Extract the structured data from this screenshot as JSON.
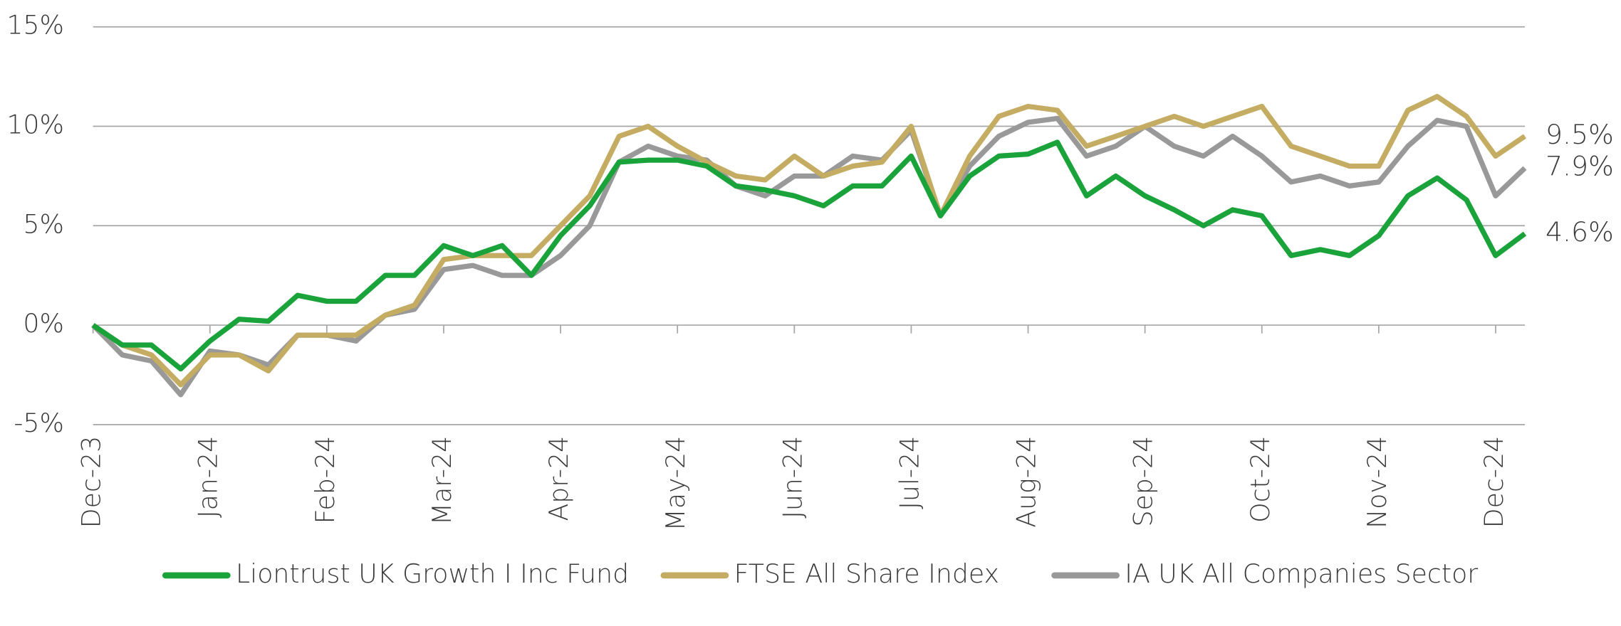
{
  "chart_data": {
    "type": "line",
    "categories": [
      "Dec-23",
      null,
      null,
      null,
      "Jan-24",
      null,
      null,
      null,
      "Feb-24",
      null,
      null,
      null,
      "Mar-24",
      null,
      null,
      null,
      "Apr-24",
      null,
      null,
      null,
      "May-24",
      null,
      null,
      null,
      "Jun-24",
      null,
      null,
      null,
      "Jul-24",
      null,
      null,
      null,
      "Aug-24",
      null,
      null,
      null,
      "Sep-24",
      null,
      null,
      null,
      "Oct-24",
      null,
      null,
      null,
      "Nov-24",
      null,
      null,
      null,
      "Dec-24",
      null
    ],
    "series": [
      {
        "name": "Liontrust UK Growth I Inc Fund",
        "color": "#1aa33a",
        "end_label": "4.6%",
        "values": [
          0,
          -1,
          -1,
          -2.2,
          -0.8,
          0.3,
          0.2,
          1.5,
          1.2,
          1.2,
          2.5,
          2.5,
          4,
          3.5,
          4,
          2.5,
          4.5,
          6,
          8.2,
          8.3,
          8.3,
          8,
          7,
          6.8,
          6.5,
          6,
          7,
          7,
          8.5,
          5.5,
          7.5,
          8.5,
          8.6,
          9.2,
          6.5,
          7.5,
          6.5,
          5.8,
          5,
          5.8,
          5.5,
          3.5,
          3.8,
          3.5,
          4.5,
          6.5,
          7.4,
          6.3,
          3.5,
          4.6
        ]
      },
      {
        "name": "FTSE All Share Index",
        "color": "#c4ad62",
        "end_label": "9.5%",
        "values": [
          0,
          -1,
          -1.5,
          -3,
          -1.5,
          -1.5,
          -2.3,
          -0.5,
          -0.5,
          -0.5,
          0.5,
          1,
          3.3,
          3.5,
          3.5,
          3.5,
          5,
          6.5,
          9.5,
          10,
          9,
          8.2,
          7.5,
          7.3,
          8.5,
          7.5,
          8,
          8.2,
          10,
          5.5,
          8.5,
          10.5,
          11,
          10.8,
          9,
          9.5,
          10,
          10.5,
          10,
          10.5,
          11,
          9,
          8.5,
          8,
          8,
          10.8,
          11.5,
          10.5,
          8.5,
          9.5
        ]
      },
      {
        "name": "IA UK All Companies Sector",
        "color": "#999999",
        "end_label": "7.9%",
        "values": [
          0,
          -1.5,
          -1.8,
          -3.5,
          -1.3,
          -1.5,
          -2,
          -0.5,
          -0.5,
          -0.8,
          0.5,
          0.8,
          2.8,
          3,
          2.5,
          2.5,
          3.5,
          5,
          8.2,
          9,
          8.5,
          8.3,
          7,
          6.5,
          7.5,
          7.5,
          8.5,
          8.3,
          9.8,
          5.5,
          8,
          9.5,
          10.2,
          10.4,
          8.5,
          9,
          10,
          9,
          8.5,
          9.5,
          8.5,
          7.2,
          7.5,
          7,
          7.2,
          9,
          10.3,
          10,
          6.5,
          7.9
        ]
      }
    ],
    "ylim": [
      -5,
      15
    ],
    "yticks": [
      {
        "value": -5,
        "label": "-5%"
      },
      {
        "value": 0,
        "label": "0%"
      },
      {
        "value": 5,
        "label": "5%"
      },
      {
        "value": 10,
        "label": "10%"
      },
      {
        "value": 15,
        "label": "15%"
      }
    ],
    "grid": true,
    "legend": "bottom"
  }
}
